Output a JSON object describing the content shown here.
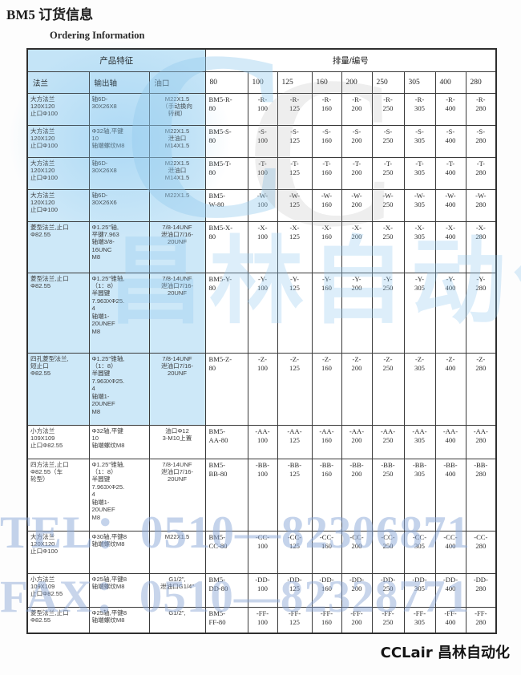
{
  "page": {
    "title": "BM5 订货信息",
    "subtitle": "Ordering Information",
    "footer_brand": "CCLair 昌林自动化"
  },
  "watermark": {
    "logo_letter": "C",
    "brand": "昌林自动化",
    "tel": "TEL：0510—82306871",
    "fax": "FAX：0510—82328771"
  },
  "table": {
    "group_headers": {
      "product": "产品特征",
      "displacement": "排量/编号"
    },
    "feature_columns": [
      "法兰",
      "输出轴",
      "油口"
    ],
    "displacement_columns": [
      "80",
      "100",
      "125",
      "160",
      "200",
      "250",
      "305",
      "400",
      "280"
    ],
    "rows": [
      {
        "flange": "大方法兰\n120X120\n止口Φ100",
        "shaft": "轴6D-\n30X26X8",
        "port": "M22X1.5\n（手动换向\n转阀）",
        "codes": [
          "BM5-R-\n80",
          "-R-\n100",
          "-R-\n125",
          "-R-\n160",
          "-R-\n200",
          "-R-\n250",
          "-R-\n305",
          "-R-\n400",
          "-R-\n280"
        ]
      },
      {
        "flange": "大方法兰\n120X120\n止口Φ100",
        "shaft": "Φ32轴,平键\n10\n轴端螺纹M8",
        "port": "M22X1.5\n泄油口\nM14X1.5",
        "codes": [
          "BM5-S-\n80",
          "-S-\n100",
          "-S-\n125",
          "-S-\n160",
          "-S-\n200",
          "-S-\n250",
          "-S-\n305",
          "-S-\n400",
          "-S-\n280"
        ]
      },
      {
        "flange": "大方法兰\n120X120\n止口Φ100",
        "shaft": "轴6D-\n30X26X8",
        "port": "M22X1.5\n泄油口\nM14X1.5",
        "codes": [
          "BM5-T-\n80",
          "-T-\n100",
          "-T-\n125",
          "-T-\n160",
          "-T-\n200",
          "-T-\n250",
          "-T-\n305",
          "-T-\n400",
          "-T-\n280"
        ]
      },
      {
        "flange": "大方法兰\n120X120\n止口Φ100",
        "shaft": "轴6D-\n30X26X6",
        "port": "M22X1.5",
        "codes": [
          "BM5-\nW-80",
          "-W-\n100",
          "-W-\n125",
          "-W-\n160",
          "-W-\n200",
          "-W-\n250",
          "-W-\n305",
          "-W-\n400",
          "-W-\n280"
        ]
      },
      {
        "flange": "菱型法兰,止口\nΦ82.55",
        "shaft": "Φ1.25''轴,\n平键7.963\n轴端3/8-\n16UNC\nM8",
        "port": "7/8-14UNF\n泄油口7/16-\n20UNF",
        "codes": [
          "BM5-X-\n80",
          "-X-\n100",
          "-X-\n125",
          "-X-\n160",
          "-X-\n200",
          "-X-\n250",
          "-X-\n305",
          "-X-\n400",
          "-X-\n280"
        ]
      },
      {
        "flange": "菱型法兰,止口\nΦ82.55",
        "shaft": "Φ1.25''锥轴,\n（1：8）\n半圆键\n7.963XΦ25.\n4\n轴端1-\n20UNEF\nM8",
        "port": "7/8-14UNF\n泄油口7/16-\n20UNF",
        "codes": [
          "BM5-Y-\n80",
          "-Y-\n100",
          "-Y-\n125",
          "-Y-\n160",
          "-Y-\n200",
          "-Y-\n250",
          "-Y-\n305",
          "-Y-\n400",
          "-Y-\n280"
        ]
      },
      {
        "flange": "四孔菱型法兰,\n短止口\nΦ82.55",
        "shaft": "Φ1.25''锥轴,\n（1：8）\n半圆键\n7.963XΦ25.\n4\n轴端1-\n20UNEF\nM8",
        "port": "7/8-14UNF\n泄油口7/16-\n20UNF",
        "codes": [
          "BM5-Z-\n80",
          "-Z-\n100",
          "-Z-\n125",
          "-Z-\n160",
          "-Z-\n200",
          "-Z-\n250",
          "-Z-\n305",
          "-Z-\n400",
          "-Z-\n280"
        ]
      },
      {
        "flange": "小方法兰\n109X109\n止口Φ82.55",
        "shaft": "Φ32轴,平键\n10\n轴端螺纹M8",
        "port": "油口Φ12\n3-M10上置",
        "codes": [
          "BM5-\nAA-80",
          "-AA-\n100",
          "-AA-\n125",
          "-AA-\n160",
          "-AA-\n200",
          "-AA-\n250",
          "-AA-\n305",
          "-AA-\n400",
          "-AA-\n280"
        ]
      },
      {
        "flange": "四方法兰,止口\nΦ82.55（车\n轮型）",
        "shaft": "Φ1.25''锥轴,\n（1：8）\n半圆键\n7.963XΦ25.\n4\n轴端1-\n20UNEF\nM8",
        "port": "7/8-14UNF\n泄油口7/16-\n20UNF",
        "codes": [
          "BM5-\nBB-80",
          "-BB-\n100",
          "-BB-\n125",
          "-BB-\n160",
          "-BB-\n200",
          "-BB-\n250",
          "-BB-\n305",
          "-BB-\n400",
          "-BB-\n280"
        ]
      },
      {
        "flange": "大方法兰\n120X120\n止口Φ100",
        "shaft": "Φ30轴,平键8\n轴端螺纹M8",
        "port": "M22X1.5",
        "codes": [
          "BM5-\nCC-80",
          "-CC-\n100",
          "-CC-\n125",
          "-CC-\n160",
          "-CC-\n200",
          "-CC-\n250",
          "-CC-\n305",
          "-CC-\n400",
          "-CC-\n280"
        ]
      },
      {
        "flange": "小方法兰\n109X109\n止口Φ82.55",
        "shaft": "Φ25轴,平键8\n轴端螺纹M8",
        "port": "G1/2\",\n泄油口G1/4\"",
        "codes": [
          "BM5-\nDD-80",
          "-DD-\n100",
          "-DD-\n125",
          "-DD-\n160",
          "-DD-\n200",
          "-DD-\n250",
          "-DD-\n305",
          "-DD-\n400",
          "-DD-\n280"
        ]
      },
      {
        "flange": "菱型法兰,止口\nΦ82.55",
        "shaft": "Φ25轴,平键8\n轴端螺纹M8",
        "port": "G1/2\",",
        "codes": [
          "BM5-\nFF-80",
          "-FF-\n100",
          "-FF-\n125",
          "-FF-\n160",
          "-FF-\n200",
          "-FF-\n250",
          "-FF-\n305",
          "-FF-\n400",
          "-FF-\n280"
        ]
      }
    ]
  }
}
